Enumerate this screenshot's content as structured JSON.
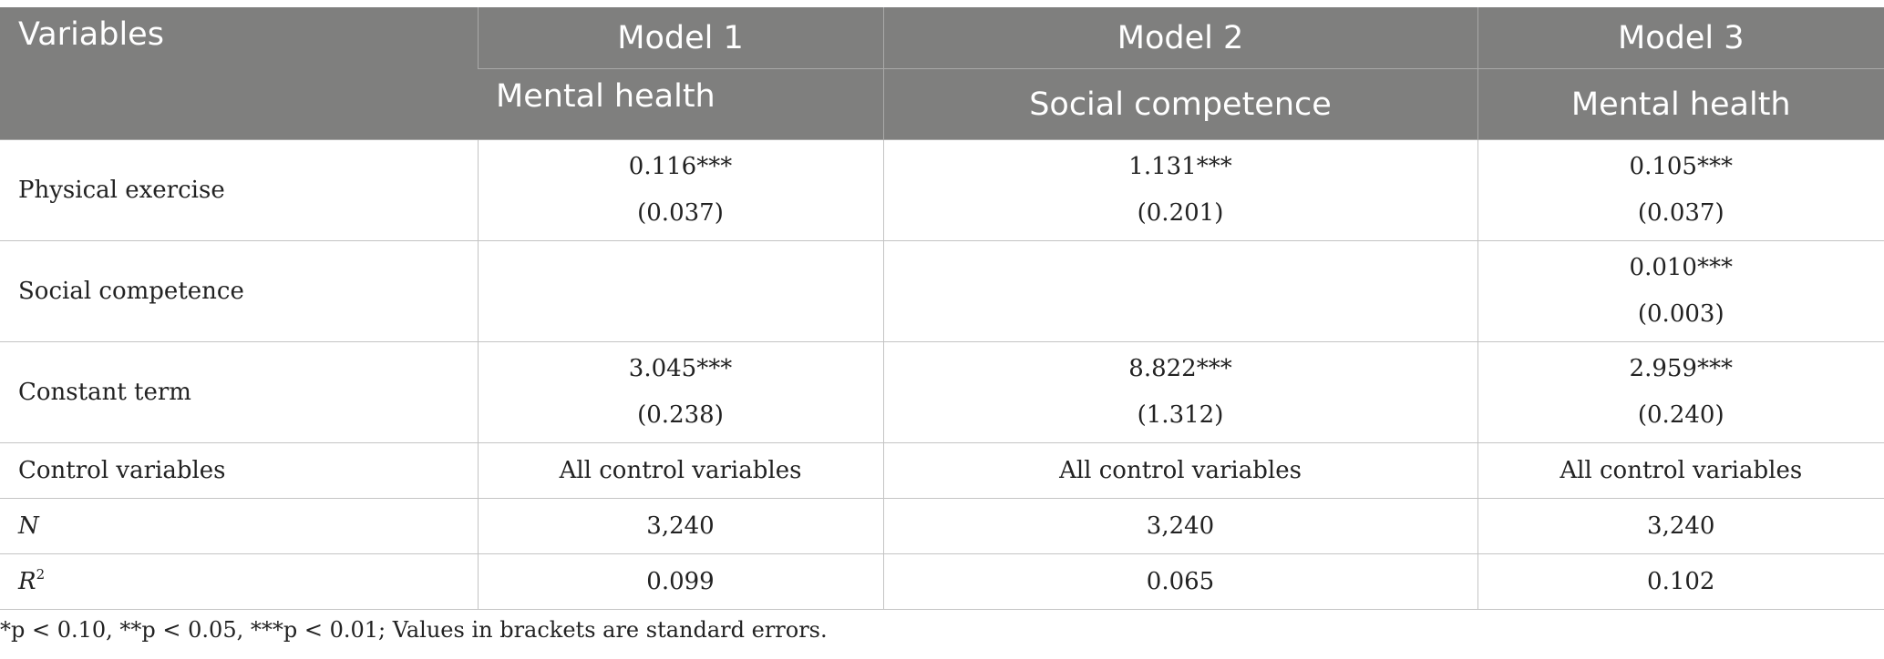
{
  "header": {
    "variables_label": "Variables",
    "models": [
      {
        "label": "Model 1",
        "outcome": "Mental health"
      },
      {
        "label": "Model 2",
        "outcome": "Social competence"
      },
      {
        "label": "Model 3",
        "outcome": "Mental health"
      }
    ]
  },
  "rows": {
    "physical_exercise": {
      "label": "Physical exercise",
      "m1": {
        "coef": "0.116***",
        "se": "(0.037)"
      },
      "m2": {
        "coef": "1.131***",
        "se": "(0.201)"
      },
      "m3": {
        "coef": "0.105***",
        "se": "(0.037)"
      }
    },
    "social_competence": {
      "label": "Social competence",
      "m1": {
        "coef": "",
        "se": ""
      },
      "m2": {
        "coef": "",
        "se": ""
      },
      "m3": {
        "coef": "0.010***",
        "se": "(0.003)"
      }
    },
    "constant": {
      "label": "Constant term",
      "m1": {
        "coef": "3.045***",
        "se": "(0.238)"
      },
      "m2": {
        "coef": "8.822***",
        "se": "(1.312)"
      },
      "m3": {
        "coef": "2.959***",
        "se": "(0.240)"
      }
    },
    "controls": {
      "label": "Control variables",
      "m1": "All control variables",
      "m2": "All control variables",
      "m3": "All control variables"
    },
    "n": {
      "label": "N",
      "m1": "3,240",
      "m2": "3,240",
      "m3": "3,240"
    },
    "r2": {
      "label": "R",
      "label_sup": "2",
      "m1": "0.099",
      "m2": "0.065",
      "m3": "0.102"
    }
  },
  "footnote": "*p < 0.10, **p < 0.05, ***p < 0.01; Values in brackets are standard errors."
}
